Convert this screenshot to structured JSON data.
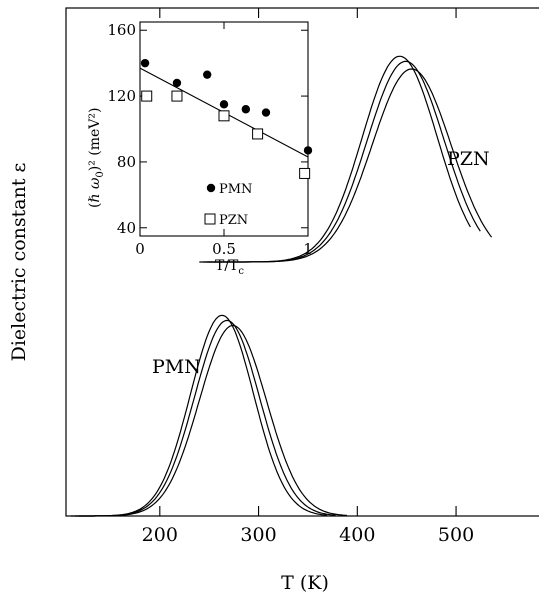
{
  "chart_data": [
    {
      "type": "line",
      "title": "",
      "xlabel": "T (K)",
      "ylabel": "Dielectric constant ε",
      "xlim": [
        105,
        585
      ],
      "ylim": [
        0,
        1
      ],
      "xticks": [
        200,
        300,
        400,
        500
      ],
      "xtick_labels": [
        "200",
        "300",
        "400",
        "500"
      ],
      "y_ticks_labeled": false,
      "grid": false,
      "series": [
        {
          "name": "PMN",
          "group": "PMN",
          "peak_x": 263,
          "peak_y": 0.395,
          "width": 32,
          "baseline": 0.0,
          "x_range": [
            110,
            370
          ]
        },
        {
          "name": "PMN",
          "group": "PMN",
          "peak_x": 268,
          "peak_y": 0.385,
          "width": 33,
          "baseline": 0.0,
          "x_range": [
            114,
            378
          ]
        },
        {
          "name": "PMN",
          "group": "PMN",
          "peak_x": 274,
          "peak_y": 0.375,
          "width": 34,
          "baseline": 0.0,
          "x_range": [
            118,
            390
          ]
        },
        {
          "name": "PZN",
          "group": "PZN",
          "peak_x": 443,
          "peak_y": 0.905,
          "width": 38,
          "baseline": 0.5,
          "x_range": [
            240,
            515
          ]
        },
        {
          "name": "PZN",
          "group": "PZN",
          "peak_x": 449,
          "peak_y": 0.895,
          "width": 39,
          "baseline": 0.5,
          "x_range": [
            244,
            525
          ]
        },
        {
          "name": "PZN",
          "group": "PZN",
          "peak_x": 455,
          "peak_y": 0.88,
          "width": 40,
          "baseline": 0.5,
          "x_range": [
            248,
            537
          ]
        }
      ],
      "curve_labels": [
        "PMN",
        "PZN"
      ]
    },
    {
      "type": "scatter",
      "title": "",
      "xlabel": "T/T",
      "xlabel_sub": "c",
      "ylabel_open": "(",
      "ylabel_hbar": "ℏ",
      "ylabel_omega": " ω",
      "ylabel_sub": "0",
      "ylabel_close": ")² (meV²)",
      "xlim": [
        0,
        1
      ],
      "ylim": [
        35,
        165
      ],
      "xticks": [
        0,
        0.5,
        1
      ],
      "xtick_labels": [
        "0",
        "0.5",
        "1"
      ],
      "yticks": [
        40,
        80,
        120,
        160
      ],
      "ytick_labels": [
        "40",
        "80",
        "120",
        "160"
      ],
      "grid": false,
      "legend": {
        "placement": "lower-center",
        "entries": [
          "PMN",
          "PZN"
        ]
      },
      "series": [
        {
          "name": "PMN",
          "marker": "filled-circle",
          "x": [
            0.03,
            0.22,
            0.4,
            0.5,
            0.63,
            0.75,
            1.0
          ],
          "y": [
            140,
            128,
            133,
            115,
            112,
            110,
            87
          ]
        },
        {
          "name": "PZN",
          "marker": "open-square",
          "x": [
            0.04,
            0.22,
            0.5,
            0.7,
            0.98
          ],
          "y": [
            120,
            120,
            108,
            97,
            73
          ]
        }
      ],
      "fit_line": {
        "x": [
          0,
          1
        ],
        "y": [
          137,
          83
        ]
      }
    }
  ]
}
